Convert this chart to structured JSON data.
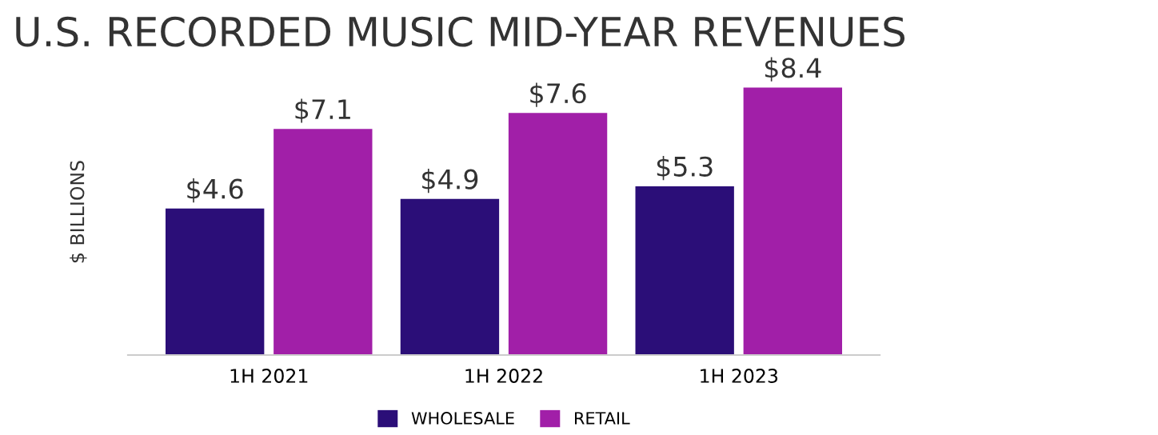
{
  "chart_data": {
    "type": "bar",
    "title": "U.S. RECORDED MUSIC MID-YEAR REVENUES",
    "ylabel": "$ BILLIONS",
    "categories": [
      "1H 2021",
      "1H 2022",
      "1H 2023"
    ],
    "series": [
      {
        "name": "WHOLESALE",
        "color": "#2b0e78",
        "values": [
          4.6,
          4.9,
          5.3
        ],
        "value_labels": [
          "$4.6",
          "$4.9",
          "$5.3"
        ]
      },
      {
        "name": "RETAIL",
        "color": "#a11fa8",
        "values": [
          7.1,
          7.6,
          8.4
        ],
        "value_labels": [
          "$7.1",
          "$7.6",
          "$8.4"
        ]
      }
    ],
    "tick_labels": "x",
    "grid": false,
    "legend": "bottom"
  }
}
